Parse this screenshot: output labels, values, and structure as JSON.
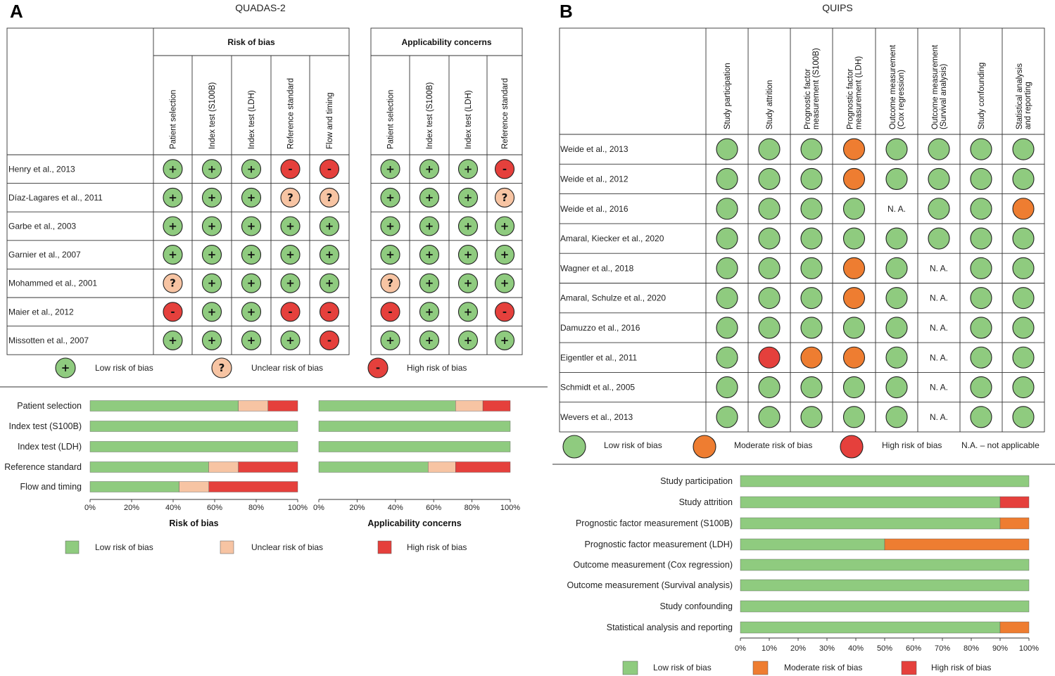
{
  "colors": {
    "low": "#8fcb7f",
    "unclear": "#f7c4a3",
    "high": "#e5403c",
    "moderate": "#ee7d31",
    "line": "#333333"
  },
  "panel_a": {
    "letter": "A",
    "title": "QUADAS-2",
    "group_rob": "Risk of bias",
    "group_app": "Applicability concerns",
    "rob_columns": [
      "Patient selection",
      "Index test (S100B)",
      "Index test (LDH)",
      "Reference standard",
      "Flow and timing"
    ],
    "app_columns": [
      "Patient selection",
      "Index test (S100B)",
      "Index test (LDH)",
      "Reference standard"
    ],
    "studies": [
      {
        "name": "Henry et al., 2013",
        "rob": [
          "low",
          "low",
          "low",
          "high",
          "high"
        ],
        "app": [
          "low",
          "low",
          "low",
          "high"
        ]
      },
      {
        "name": "Díaz-Lagares et al., 2011",
        "rob": [
          "low",
          "low",
          "low",
          "unclear",
          "unclear"
        ],
        "app": [
          "low",
          "low",
          "low",
          "unclear"
        ]
      },
      {
        "name": "Garbe et al., 2003",
        "rob": [
          "low",
          "low",
          "low",
          "low",
          "low"
        ],
        "app": [
          "low",
          "low",
          "low",
          "low"
        ]
      },
      {
        "name": "Garnier et al., 2007",
        "rob": [
          "low",
          "low",
          "low",
          "low",
          "low"
        ],
        "app": [
          "low",
          "low",
          "low",
          "low"
        ]
      },
      {
        "name": "Mohammed et al., 2001",
        "rob": [
          "unclear",
          "low",
          "low",
          "low",
          "low"
        ],
        "app": [
          "unclear",
          "low",
          "low",
          "low"
        ]
      },
      {
        "name": "Maier et al., 2012",
        "rob": [
          "high",
          "low",
          "low",
          "high",
          "high"
        ],
        "app": [
          "high",
          "low",
          "low",
          "high"
        ]
      },
      {
        "name": "Missotten et al., 2007",
        "rob": [
          "low",
          "low",
          "low",
          "low",
          "high"
        ],
        "app": [
          "low",
          "low",
          "low",
          "low"
        ]
      }
    ],
    "symbols": {
      "low": "+",
      "unclear": "?",
      "high": "-"
    },
    "legend": [
      {
        "key": "low",
        "label": "Low risk of bias"
      },
      {
        "key": "unclear",
        "label": "Unclear risk of bias"
      },
      {
        "key": "high",
        "label": "High risk of bias"
      }
    ]
  },
  "panel_b": {
    "letter": "B",
    "title": "QUIPS",
    "columns": [
      [
        "Study participation"
      ],
      [
        "Study attrition"
      ],
      [
        "Prognostic factor",
        "measurement (S100B)"
      ],
      [
        "Prognostic factor",
        "measurement (LDH)"
      ],
      [
        "Outcome measurement",
        "(Cox regression)"
      ],
      [
        "Outcome measurement",
        "(Survival analysis)"
      ],
      [
        "Study confounding"
      ],
      [
        "Statistical analysis",
        "and reporting"
      ]
    ],
    "na_text": "N. A.",
    "studies": [
      {
        "name": "Weide et al., 2013",
        "r": [
          "low",
          "low",
          "low",
          "moderate",
          "low",
          "low",
          "low",
          "low"
        ]
      },
      {
        "name": "Weide et al., 2012",
        "r": [
          "low",
          "low",
          "low",
          "moderate",
          "low",
          "low",
          "low",
          "low"
        ]
      },
      {
        "name": "Weide et al., 2016",
        "r": [
          "low",
          "low",
          "low",
          "low",
          "na",
          "low",
          "low",
          "moderate"
        ]
      },
      {
        "name": "Amaral, Kiecker et al., 2020",
        "r": [
          "low",
          "low",
          "low",
          "low",
          "low",
          "low",
          "low",
          "low"
        ]
      },
      {
        "name": "Wagner et al., 2018",
        "r": [
          "low",
          "low",
          "low",
          "moderate",
          "low",
          "na",
          "low",
          "low"
        ]
      },
      {
        "name": "Amaral, Schulze et al.,  2020",
        "r": [
          "low",
          "low",
          "low",
          "moderate",
          "low",
          "na",
          "low",
          "low"
        ]
      },
      {
        "name": "Damuzzo et al., 2016",
        "r": [
          "low",
          "low",
          "low",
          "low",
          "low",
          "na",
          "low",
          "low"
        ]
      },
      {
        "name": "Eigentler et al., 2011",
        "r": [
          "low",
          "high",
          "moderate",
          "moderate",
          "low",
          "na",
          "low",
          "low"
        ]
      },
      {
        "name": "Schmidt et al., 2005",
        "r": [
          "low",
          "low",
          "low",
          "low",
          "low",
          "na",
          "low",
          "low"
        ]
      },
      {
        "name": "Wevers et al., 2013",
        "r": [
          "low",
          "low",
          "low",
          "low",
          "low",
          "na",
          "low",
          "low"
        ]
      }
    ],
    "legend": [
      {
        "key": "low",
        "label": "Low risk of bias"
      },
      {
        "key": "moderate",
        "label": "Moderate risk of bias"
      },
      {
        "key": "high",
        "label": "High risk of bias"
      }
    ],
    "na_legend": "N.A. – not applicable"
  },
  "chart_data": [
    {
      "type": "bar",
      "orientation": "horizontal-stacked",
      "title": "Risk of bias",
      "categories": [
        "Patient selection",
        "Index test (S100B)",
        "Index test (LDH)",
        "Reference standard",
        "Flow and timing"
      ],
      "series": [
        {
          "name": "Low risk of bias",
          "values": [
            71.4,
            100,
            100,
            57.1,
            42.9
          ]
        },
        {
          "name": "Unclear risk of bias",
          "values": [
            14.3,
            0,
            0,
            14.3,
            14.3
          ]
        },
        {
          "name": "High risk of bias",
          "values": [
            14.3,
            0,
            0,
            28.6,
            42.8
          ]
        }
      ],
      "ticks": [
        "0%",
        "20%",
        "40%",
        "60%",
        "80%",
        "100%"
      ],
      "xlim": [
        0,
        100
      ]
    },
    {
      "type": "bar",
      "orientation": "horizontal-stacked",
      "title": "Applicability concerns",
      "categories": [
        "Patient selection",
        "Index test (S100B)",
        "Index test (LDH)",
        "Reference standard"
      ],
      "series": [
        {
          "name": "Low risk of bias",
          "values": [
            71.4,
            100,
            100,
            57.1
          ]
        },
        {
          "name": "Unclear risk of bias",
          "values": [
            14.3,
            0,
            0,
            14.3
          ]
        },
        {
          "name": "High risk of bias",
          "values": [
            14.3,
            0,
            0,
            28.6
          ]
        }
      ],
      "ticks": [
        "0%",
        "20%",
        "40%",
        "60%",
        "80%",
        "100%"
      ],
      "xlim": [
        0,
        100
      ]
    },
    {
      "type": "bar",
      "orientation": "horizontal-stacked",
      "title": "QUIPS",
      "categories": [
        "Study participation",
        "Study attrition",
        "Prognostic factor measurement (S100B)",
        "Prognostic factor measurement (LDH)",
        "Outcome measurement (Cox regression)",
        "Outcome measurement (Survival analysis)",
        "Study confounding",
        "Statistical analysis and reporting"
      ],
      "series": [
        {
          "name": "Low risk of bias",
          "values": [
            100,
            90,
            90,
            50,
            100,
            100,
            100,
            90
          ]
        },
        {
          "name": "Moderate risk of bias",
          "values": [
            0,
            0,
            10,
            50,
            0,
            0,
            0,
            10
          ]
        },
        {
          "name": "High risk of bias",
          "values": [
            0,
            10,
            0,
            0,
            0,
            0,
            0,
            0
          ]
        }
      ],
      "ticks": [
        "0%",
        "10%",
        "20%",
        "30%",
        "40%",
        "50%",
        "60%",
        "70%",
        "80%",
        "90%",
        "100%"
      ],
      "xlim": [
        0,
        100
      ]
    }
  ]
}
